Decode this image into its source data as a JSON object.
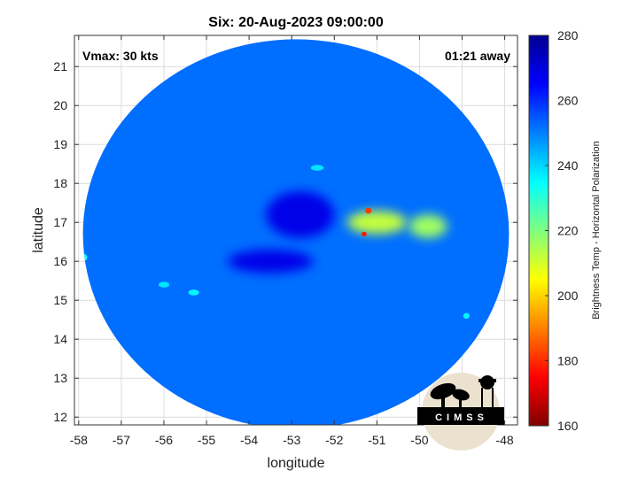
{
  "chart_data": {
    "type": "heatmap",
    "title": "Six: 20-Aug-2023 09:00:00",
    "xlabel": "longitude",
    "ylabel": "latitude",
    "xlim": [
      -58.1,
      -47.7
    ],
    "ylim": [
      11.8,
      21.8
    ],
    "x_ticks": [
      -58,
      -57,
      -56,
      -55,
      -54,
      -53,
      -52,
      -51,
      -50,
      -49,
      -48
    ],
    "y_ticks": [
      12,
      13,
      14,
      15,
      16,
      17,
      18,
      19,
      20,
      21
    ],
    "grid": true,
    "annotations": {
      "vmax": "Vmax: 30 kts",
      "time_offset": "01:21 away"
    },
    "colorbar": {
      "label": "Brightness Temp - Horizontal Polarization",
      "range": [
        160,
        280
      ],
      "ticks": [
        160,
        180,
        200,
        220,
        240,
        260,
        280
      ],
      "colormap": "jet"
    },
    "swath": {
      "center_lon": -52.9,
      "center_lat": 16.7,
      "radius_deg": 5.0
    },
    "field": {
      "background": 252,
      "features": [
        {
          "lon": -52.8,
          "lat": 17.2,
          "value": 268,
          "width_deg": 1.6,
          "height_deg": 1.2
        },
        {
          "lon": -53.5,
          "lat": 16.0,
          "value": 268,
          "width_deg": 2.0,
          "height_deg": 0.6
        },
        {
          "lon": -51.0,
          "lat": 17.0,
          "value": 212,
          "width_deg": 1.4,
          "height_deg": 0.6
        },
        {
          "lon": -49.8,
          "lat": 16.9,
          "value": 216,
          "width_deg": 0.9,
          "height_deg": 0.6
        },
        {
          "lon": -51.2,
          "lat": 17.3,
          "value": 182,
          "width_deg": 0.15,
          "height_deg": 0.15
        },
        {
          "lon": -51.3,
          "lat": 16.7,
          "value": 178,
          "width_deg": 0.12,
          "height_deg": 0.12
        },
        {
          "lon": -57.9,
          "lat": 16.1,
          "value": 232,
          "width_deg": 0.2,
          "height_deg": 0.2
        },
        {
          "lon": -55.3,
          "lat": 15.2,
          "value": 236,
          "width_deg": 0.25,
          "height_deg": 0.15
        },
        {
          "lon": -56.0,
          "lat": 15.4,
          "value": 238,
          "width_deg": 0.25,
          "height_deg": 0.15
        },
        {
          "lon": -52.4,
          "lat": 18.4,
          "value": 238,
          "width_deg": 0.3,
          "height_deg": 0.15
        },
        {
          "lon": -48.9,
          "lat": 14.6,
          "value": 236,
          "width_deg": 0.15,
          "height_deg": 0.15
        }
      ]
    }
  },
  "logo": {
    "text": "CIMSS"
  },
  "colors": {
    "background": "#ffffff",
    "axis": "#333333",
    "grid": "#dcdcdc",
    "logo_fg": "#000000",
    "logo_bg": "#eae2cf"
  }
}
